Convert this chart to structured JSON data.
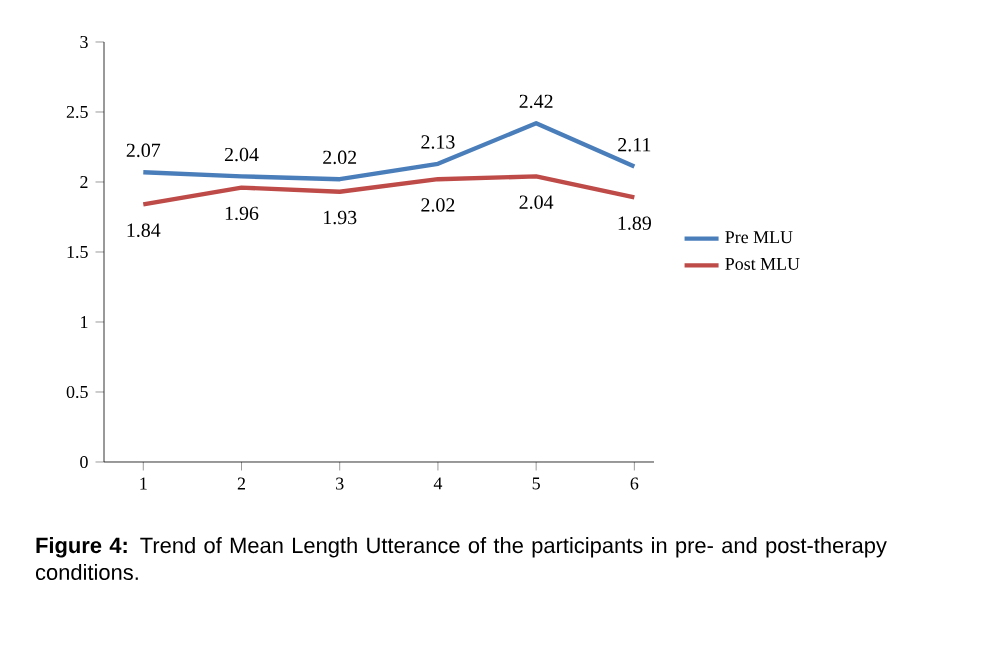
{
  "chart_data": {
    "type": "line",
    "categories": [
      "1",
      "2",
      "3",
      "4",
      "5",
      "6"
    ],
    "series": [
      {
        "name": "Pre MLU",
        "color": "#4a7ebb",
        "values": [
          2.07,
          2.04,
          2.02,
          2.13,
          2.42,
          2.11
        ]
      },
      {
        "name": "Post MLU",
        "color": "#be4b48",
        "values": [
          1.84,
          1.96,
          1.93,
          2.02,
          2.04,
          1.89
        ]
      }
    ],
    "ylim": [
      0,
      3
    ],
    "yticks": [
      0,
      0.5,
      1,
      1.5,
      2,
      2.5,
      3
    ],
    "data_labels": true,
    "legend": "right",
    "grid": false,
    "marker": "none",
    "line_style": "solid",
    "annotations": [
      "**Figure 4:** Trend of Mean Length Utterance of the participants in pre- and post-therapy conditions."
    ]
  }
}
